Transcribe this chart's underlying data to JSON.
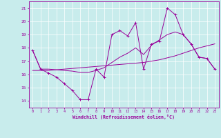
{
  "xlabel": "Windchill (Refroidissement éolien,°C)",
  "bg_color": "#c8ecec",
  "grid_color": "#ffffff",
  "line_color": "#990099",
  "hours": [
    0,
    1,
    2,
    3,
    4,
    5,
    6,
    7,
    8,
    9,
    10,
    11,
    12,
    13,
    14,
    15,
    16,
    17,
    18,
    19,
    20,
    21,
    22,
    23
  ],
  "series1": [
    17.8,
    16.4,
    16.1,
    15.8,
    15.3,
    14.8,
    14.1,
    14.1,
    16.4,
    15.8,
    19.0,
    19.3,
    18.9,
    19.9,
    16.4,
    18.3,
    18.5,
    21.0,
    20.5,
    19.0,
    18.3,
    17.3,
    17.2,
    16.4
  ],
  "series2": [
    16.3,
    16.3,
    16.3,
    16.35,
    16.4,
    16.45,
    16.5,
    16.55,
    16.6,
    16.65,
    16.7,
    16.75,
    16.8,
    16.85,
    16.9,
    17.0,
    17.1,
    17.25,
    17.4,
    17.6,
    17.8,
    18.0,
    18.15,
    18.3
  ],
  "series3": [
    17.8,
    16.4,
    16.4,
    16.35,
    16.3,
    16.25,
    16.15,
    16.15,
    16.3,
    16.5,
    16.9,
    17.3,
    17.6,
    18.0,
    17.5,
    18.2,
    18.6,
    19.0,
    19.2,
    19.0,
    18.3,
    17.3,
    17.2,
    16.4
  ],
  "ylim": [
    13.5,
    21.5
  ],
  "yticks": [
    14,
    15,
    16,
    17,
    18,
    19,
    20,
    21
  ],
  "xlim": [
    -0.5,
    23.5
  ]
}
